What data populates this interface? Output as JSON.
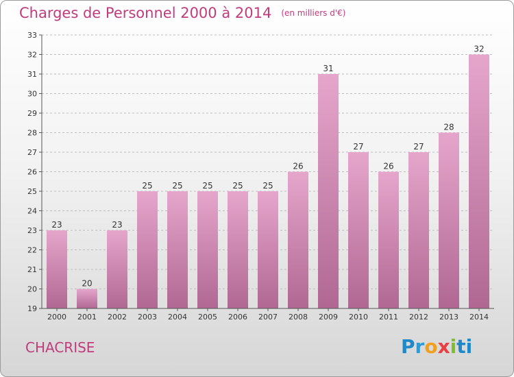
{
  "header": {
    "title": "Charges de Personnel 2000 à 2014",
    "subtitle": "(en milliers d'€)"
  },
  "footer": {
    "town": "CHACRISE",
    "logo_letters": [
      "P",
      "r",
      "o",
      "x",
      "i",
      "ti"
    ]
  },
  "colors": {
    "accent": "#c03c7c",
    "bar_top": "#e6a6cc",
    "bar_bottom": "#b06892"
  },
  "chart_data": {
    "type": "bar",
    "title": "Charges de Personnel 2000 à 2014",
    "subtitle": "(en milliers d'€)",
    "categories": [
      "2000",
      "2001",
      "2002",
      "2003",
      "2004",
      "2005",
      "2006",
      "2007",
      "2008",
      "2009",
      "2010",
      "2011",
      "2012",
      "2013",
      "2014"
    ],
    "values": [
      23,
      20,
      23,
      25,
      25,
      25,
      25,
      25,
      26,
      31,
      27,
      26,
      27,
      28,
      32
    ],
    "xlabel": "",
    "ylabel": "",
    "ylim": [
      19,
      33
    ],
    "yticks": [
      19,
      20,
      21,
      22,
      23,
      24,
      25,
      26,
      27,
      28,
      29,
      30,
      31,
      32,
      33
    ],
    "grid": true,
    "data_labels": true
  }
}
